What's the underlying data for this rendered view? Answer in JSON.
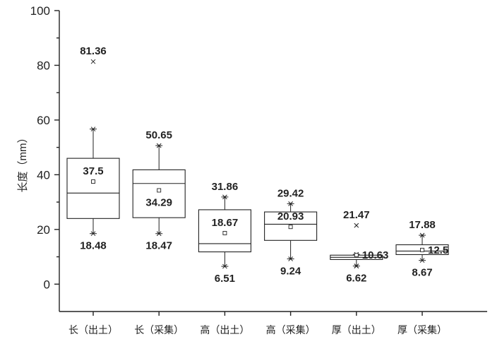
{
  "chart_data": {
    "type": "box",
    "ylabel": "长度（mm）",
    "xlabel": "",
    "ylim": [
      -10,
      100
    ],
    "yticks": [
      0,
      20,
      40,
      60,
      80,
      100
    ],
    "categories": [
      "长（出土）",
      "长（采集）",
      "高（出土）",
      "高（采集）",
      "厚（出土）",
      "厚（采集）"
    ],
    "boxes": [
      {
        "whisker_low": 18.48,
        "q1": 24,
        "median": 33.3,
        "q3": 46,
        "whisker_high": 56.7,
        "mean": 37.5,
        "outliers": [
          81.36
        ],
        "labels": [
          {
            "text": "81.36",
            "at": 81.36,
            "side": "above"
          },
          {
            "text": "37.5",
            "at": 37.5,
            "side": "above"
          },
          {
            "text": "18.48",
            "at": 18.48,
            "side": "below"
          }
        ]
      },
      {
        "whisker_low": 18.47,
        "q1": 24.3,
        "median": 36.8,
        "q3": 41.8,
        "whisker_high": 50.65,
        "mean": 34.29,
        "outliers": [],
        "labels": [
          {
            "text": "50.65",
            "at": 50.65,
            "side": "above"
          },
          {
            "text": "34.29",
            "at": 34.29,
            "side": "below"
          },
          {
            "text": "18.47",
            "at": 18.47,
            "side": "below"
          }
        ]
      },
      {
        "whisker_low": 6.51,
        "q1": 11.8,
        "median": 14.8,
        "q3": 27.2,
        "whisker_high": 31.86,
        "mean": 18.67,
        "outliers": [],
        "labels": [
          {
            "text": "31.86",
            "at": 31.86,
            "side": "above"
          },
          {
            "text": "18.67",
            "at": 18.67,
            "side": "above"
          },
          {
            "text": "6.51",
            "at": 6.51,
            "side": "below"
          }
        ]
      },
      {
        "whisker_low": 9.24,
        "q1": 16,
        "median": 21.9,
        "q3": 26.4,
        "whisker_high": 29.42,
        "mean": 20.93,
        "outliers": [],
        "labels": [
          {
            "text": "29.42",
            "at": 29.42,
            "side": "above"
          },
          {
            "text": "20.93",
            "at": 20.93,
            "side": "above"
          },
          {
            "text": "9.24",
            "at": 9.24,
            "side": "below"
          }
        ]
      },
      {
        "whisker_low": 6.62,
        "q1": 9,
        "median": 9.8,
        "q3": 10.6,
        "whisker_high": 10.9,
        "mean": 10.63,
        "outliers": [
          21.47,
          6.62
        ],
        "labels": [
          {
            "text": "21.47",
            "at": 21.47,
            "side": "above"
          },
          {
            "text": "10.63",
            "at": 10.63,
            "side": "right"
          },
          {
            "text": "6.62",
            "at": 6.62,
            "side": "below"
          }
        ]
      },
      {
        "whisker_low": 8.67,
        "q1": 10.8,
        "median": 12.1,
        "q3": 14.4,
        "whisker_high": 17.88,
        "mean": 12.5,
        "outliers": [],
        "labels": [
          {
            "text": "17.88",
            "at": 17.88,
            "side": "above"
          },
          {
            "text": "12.5",
            "at": 12.5,
            "side": "right"
          },
          {
            "text": "8.67",
            "at": 8.67,
            "side": "below"
          }
        ]
      }
    ]
  }
}
